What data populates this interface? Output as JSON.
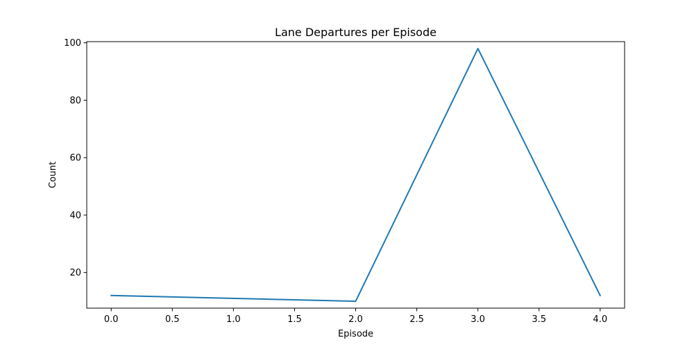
{
  "chart_data": {
    "type": "line",
    "title": "Lane Departures per Episode",
    "xlabel": "Episode",
    "ylabel": "Count",
    "xlim": [
      -0.2,
      4.2
    ],
    "ylim": [
      7.6,
      100.4
    ],
    "xticks": [
      0.0,
      0.5,
      1.0,
      1.5,
      2.0,
      2.5,
      3.0,
      3.5,
      4.0
    ],
    "xtick_labels": [
      "0.0",
      "0.5",
      "1.0",
      "1.5",
      "2.0",
      "2.5",
      "3.0",
      "3.5",
      "4.0"
    ],
    "yticks": [
      20,
      40,
      60,
      80,
      100
    ],
    "ytick_labels": [
      "20",
      "40",
      "60",
      "80",
      "100"
    ],
    "grid": false,
    "series": [
      {
        "x": [
          0,
          2,
          3,
          4
        ],
        "y": [
          12,
          10,
          98,
          12
        ],
        "color": "#1f77b4"
      }
    ]
  }
}
